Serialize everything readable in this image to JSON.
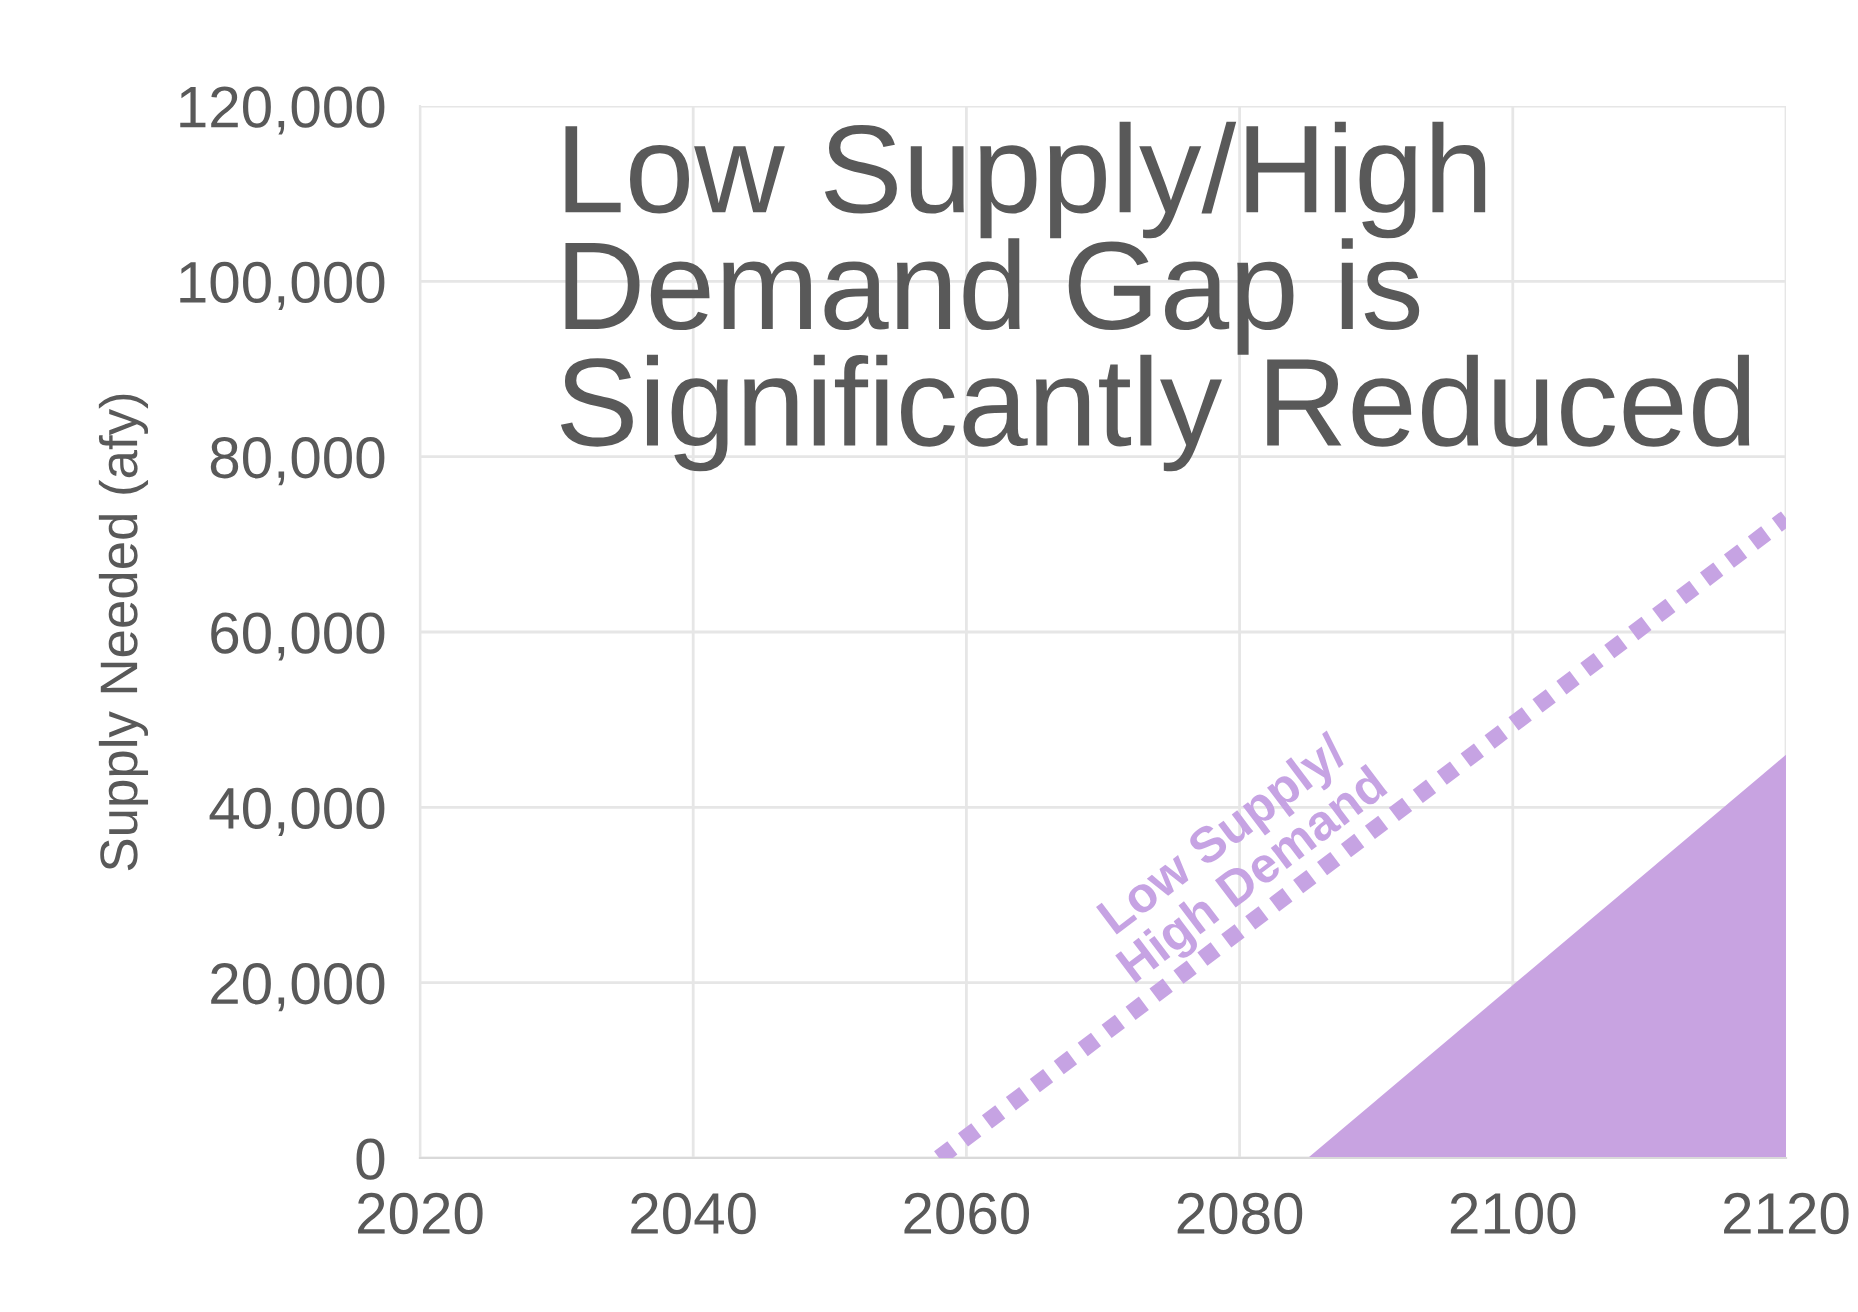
{
  "chart_data": {
    "type": "line",
    "title": "Low Supply/High\nDemand Gap is\nSignificantly Reduced",
    "ylabel": "Supply Needed (afy)",
    "series": [
      {
        "name": "Low Supply/\nHigh Demand",
        "line_style": "dotted",
        "color": "#c6a3e3",
        "x": [
          2058,
          2120
        ],
        "values": [
          0,
          73000
        ]
      },
      {
        "type": "area",
        "color": "#c8a3e1",
        "x": [
          2085,
          2120
        ],
        "values": [
          0,
          46000
        ]
      }
    ],
    "xlim": [
      2020,
      2120
    ],
    "xticks": [
      2020,
      2040,
      2060,
      2080,
      2100,
      2120
    ],
    "ylim": [
      0,
      120000
    ],
    "yticks": [
      {
        "value": 0,
        "label": "0"
      },
      {
        "value": 20000,
        "label": "20,000"
      },
      {
        "value": 40000,
        "label": "40,000"
      },
      {
        "value": 60000,
        "label": "60,000"
      },
      {
        "value": 80000,
        "label": "80,000"
      },
      {
        "value": 100000,
        "label": "100,000"
      },
      {
        "value": 120000,
        "label": "120,000"
      }
    ],
    "grid": true,
    "legend": false
  }
}
